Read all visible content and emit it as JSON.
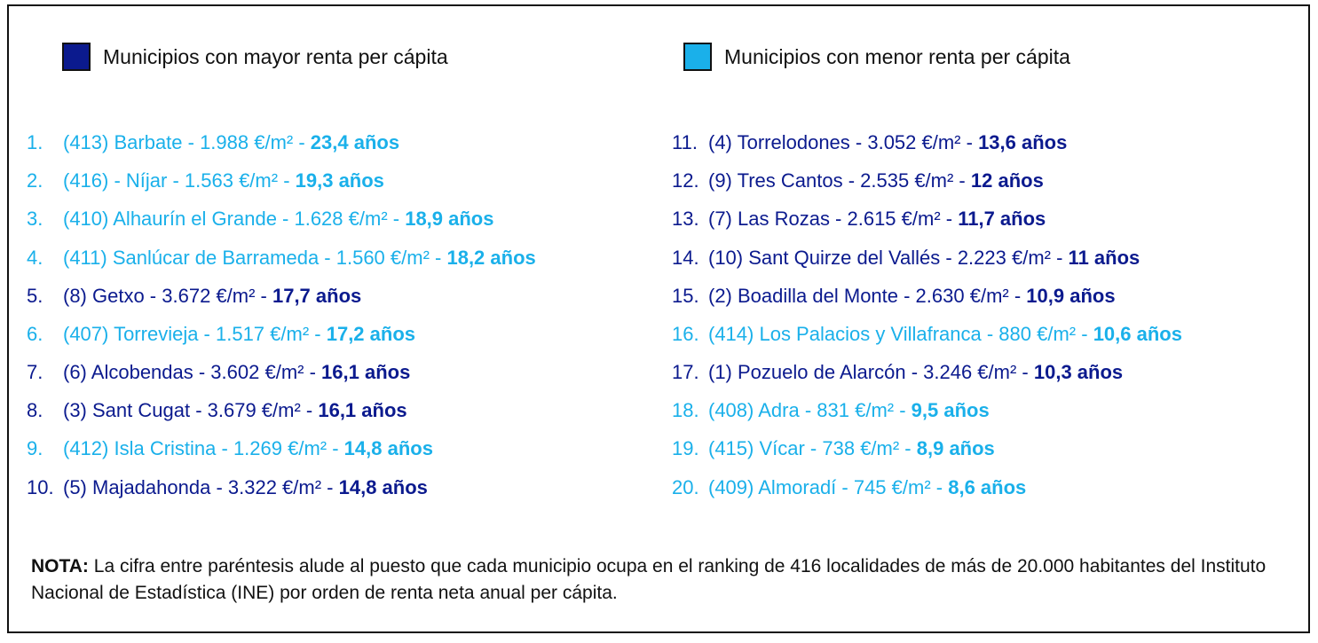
{
  "legend": [
    {
      "label": "Municipios con mayor renta per cápita",
      "color": "#0b1a8e"
    },
    {
      "label": "Municipios con menor renta per cápita",
      "color": "#1ab0ea"
    }
  ],
  "columns": [
    [
      {
        "num": "1.",
        "text": "(413) Barbate - 1.988 €/m² - ",
        "years": "23,4 años",
        "color": "#1ab0ea"
      },
      {
        "num": "2.",
        "text": "(416) - Níjar - 1.563 €/m² - ",
        "years": "19,3 años",
        "color": "#1ab0ea"
      },
      {
        "num": "3.",
        "text": "(410) Alhaurín el Grande - 1.628 €/m² - ",
        "years": "18,9 años",
        "color": "#1ab0ea"
      },
      {
        "num": "4.",
        "text": "(411) Sanlúcar de Barrameda - 1.560 €/m² - ",
        "years": "18,2 años",
        "color": "#1ab0ea"
      },
      {
        "num": "5.",
        "text": "(8) Getxo - 3.672 €/m² - ",
        "years": "17,7 años",
        "color": "#0b1a8e"
      },
      {
        "num": "6.",
        "text": "(407) Torrevieja - 1.517 €/m² - ",
        "years": "17,2 años",
        "color": "#1ab0ea"
      },
      {
        "num": "7.",
        "text": "(6) Alcobendas - 3.602 €/m² - ",
        "years": "16,1 años",
        "color": "#0b1a8e"
      },
      {
        "num": "8.",
        "text": "(3) Sant Cugat - 3.679 €/m² - ",
        "years": "16,1 años",
        "color": "#0b1a8e"
      },
      {
        "num": "9.",
        "text": "(412) Isla Cristina - 1.269 €/m² - ",
        "years": "14,8 años",
        "color": "#1ab0ea"
      },
      {
        "num": "10.",
        "text": "(5) Majadahonda - 3.322 €/m² - ",
        "years": "14,8 años",
        "color": "#0b1a8e"
      }
    ],
    [
      {
        "num": "11.",
        "text": "(4) Torrelodones - 3.052 €/m² - ",
        "years": "13,6 años",
        "color": "#0b1a8e"
      },
      {
        "num": "12.",
        "text": "(9) Tres Cantos - 2.535 €/m² - ",
        "years": "12 años",
        "color": "#0b1a8e"
      },
      {
        "num": "13.",
        "text": "(7) Las Rozas - 2.615 €/m² - ",
        "years": "11,7 años",
        "color": "#0b1a8e"
      },
      {
        "num": "14.",
        "text": "(10) Sant Quirze del Vallés - 2.223 €/m² - ",
        "years": "11 años",
        "color": "#0b1a8e"
      },
      {
        "num": "15.",
        "text": "(2) Boadilla del Monte - 2.630 €/m² - ",
        "years": "10,9 años",
        "color": "#0b1a8e"
      },
      {
        "num": "16.",
        "text": "(414) Los Palacios y Villafranca - 880 €/m² - ",
        "years": "10,6 años",
        "color": "#1ab0ea"
      },
      {
        "num": "17.",
        "text": "(1) Pozuelo de Alarcón - 3.246 €/m² - ",
        "years": "10,3 años",
        "color": "#0b1a8e"
      },
      {
        "num": "18.",
        "text": "(408) Adra - 831 €/m² - ",
        "years": "9,5 años",
        "color": "#1ab0ea"
      },
      {
        "num": "19.",
        "text": "(415) Vícar - 738 €/m² - ",
        "years": "8,9 años",
        "color": "#1ab0ea"
      },
      {
        "num": "20.",
        "text": "(409) Almoradí - 745 €/m² - ",
        "years": "8,6 años",
        "color": "#1ab0ea"
      }
    ]
  ],
  "note": {
    "label": "NOTA:",
    "text": " La cifra entre paréntesis alude al puesto que cada municipio ocupa en el ranking de 416 localidades de más de 20.000 habitantes del Instituto Nacional de Estadística (INE) por orden de renta neta anual per cápita."
  }
}
